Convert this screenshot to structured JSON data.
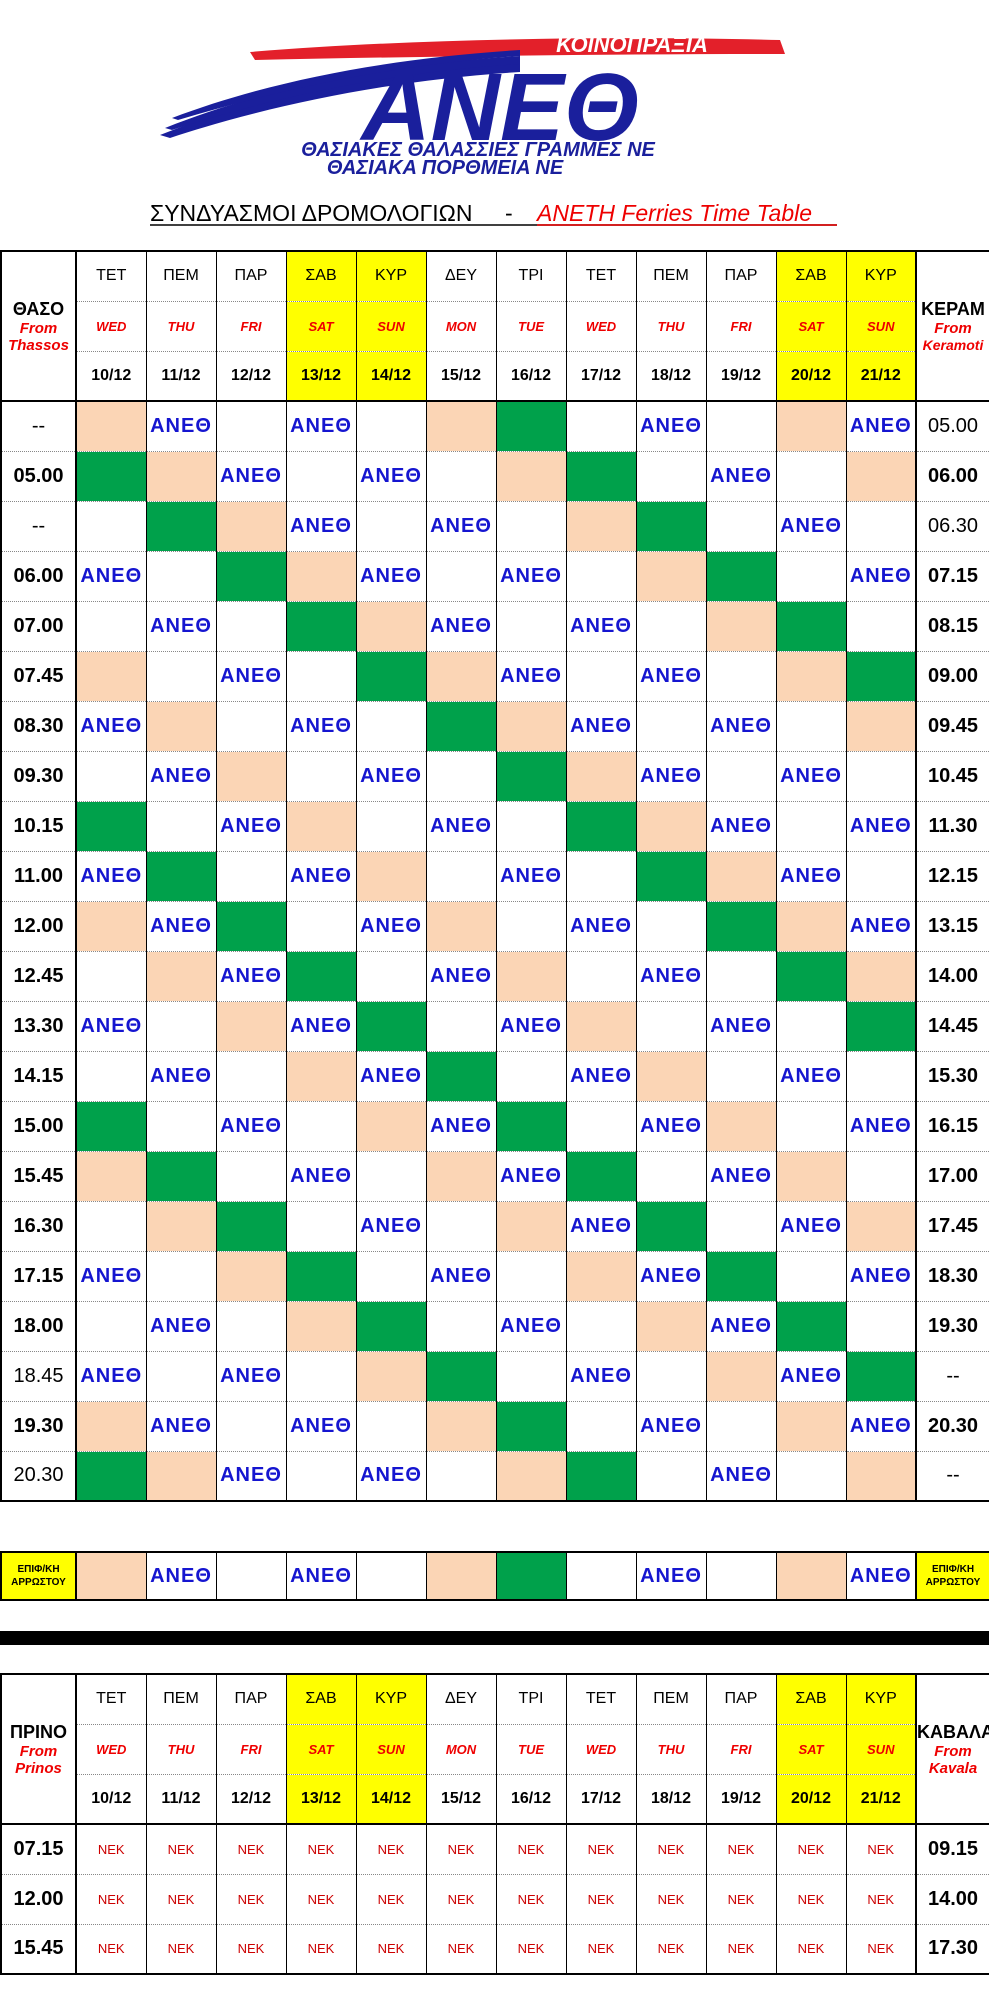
{
  "logo": {
    "top_text": "ΚΟΙΝΟΠΡΑΞΙΑ",
    "brand": "ΑΝΕΘ",
    "line1": "ΘΑΣΙΑΚΕΣ ΘΑΛΑΣΣΙΕΣ ΓΡΑΜΜΕΣ ΝΕ",
    "line2": "ΘΑΣΙΑΚΑ  ΠΟΡΘΜΕΙΑ  ΝΕ"
  },
  "title_greek": "ΣΥΝΔΥΑΣΜΟΙ ΔΡΟΜΟΛΟΓΙΩΝ",
  "title_sep": "-",
  "title_english": "ANETH Ferries Time Table",
  "colors": {
    "green": "#00a14b",
    "peach": "#fbd5b5",
    "yellow": "#ffff00",
    "blue": "#1515d0",
    "red": "#e00000"
  },
  "days": [
    {
      "gr": "ΤΕΤ",
      "en": "WED",
      "date": "10/12",
      "weekend": false
    },
    {
      "gr": "ΠΕΜ",
      "en": "THU",
      "date": "11/12",
      "weekend": false
    },
    {
      "gr": "ΠΑΡ",
      "en": "FRI",
      "date": "12/12",
      "weekend": false
    },
    {
      "gr": "ΣΑΒ",
      "en": "SAT",
      "date": "13/12",
      "weekend": true
    },
    {
      "gr": "ΚΥΡ",
      "en": "SUN",
      "date": "14/12",
      "weekend": true
    },
    {
      "gr": "ΔΕΥ",
      "en": "MON",
      "date": "15/12",
      "weekend": false
    },
    {
      "gr": "ΤΡΙ",
      "en": "TUE",
      "date": "16/12",
      "weekend": false
    },
    {
      "gr": "ΤΕΤ",
      "en": "WED",
      "date": "17/12",
      "weekend": false
    },
    {
      "gr": "ΠΕΜ",
      "en": "THU",
      "date": "18/12",
      "weekend": false
    },
    {
      "gr": "ΠΑΡ",
      "en": "FRI",
      "date": "19/12",
      "weekend": false
    },
    {
      "gr": "ΣΑΒ",
      "en": "SAT",
      "date": "20/12",
      "weekend": true
    },
    {
      "gr": "ΚΥΡ",
      "en": "SUN",
      "date": "21/12",
      "weekend": true
    }
  ],
  "thassos": {
    "left_title": "ΘΑΣΟ",
    "left_from": "From",
    "left_place": "Thassos",
    "right_title": "ΚΕΡΑΜ",
    "right_from": "From",
    "right_place": "Keramoti",
    "operator": "ΑΝΕΘ",
    "legend": "cell codes: A = ΑΝΕΘ sailing, G = green, P = peach, - = empty",
    "rows": [
      {
        "left": "--",
        "left_bold": false,
        "right": "05.00",
        "right_bold": false,
        "cells": "P A - A - P G - A - P A"
      },
      {
        "left": "05.00",
        "left_bold": true,
        "right": "06.00",
        "right_bold": true,
        "cells": "G P A - A - P G - A - P"
      },
      {
        "left": "--",
        "left_bold": false,
        "right": "06.30",
        "right_bold": false,
        "cells": "- G P A - A - P G - A -"
      },
      {
        "left": "06.00",
        "left_bold": true,
        "right": "07.15",
        "right_bold": true,
        "cells": "A - G P A - A - P G - A"
      },
      {
        "left": "07.00",
        "left_bold": true,
        "right": "08.15",
        "right_bold": true,
        "cells": "- A - G P A - A - P G -"
      },
      {
        "left": "07.45",
        "left_bold": true,
        "right": "09.00",
        "right_bold": true,
        "cells": "P - A - G P A - A - P G"
      },
      {
        "left": "08.30",
        "left_bold": true,
        "right": "09.45",
        "right_bold": true,
        "cells": "A P - A - G P A - A - P"
      },
      {
        "left": "09.30",
        "left_bold": true,
        "right": "10.45",
        "right_bold": true,
        "cells": "- A P - A - G P A - A -"
      },
      {
        "left": "10.15",
        "left_bold": true,
        "right": "11.30",
        "right_bold": true,
        "cells": "G - A P - A - G P A - A"
      },
      {
        "left": "11.00",
        "left_bold": true,
        "right": "12.15",
        "right_bold": true,
        "cells": "A G - A P - A - G P A -"
      },
      {
        "left": "12.00",
        "left_bold": true,
        "right": "13.15",
        "right_bold": true,
        "cells": "P A G - A P - A - G P A"
      },
      {
        "left": "12.45",
        "left_bold": true,
        "right": "14.00",
        "right_bold": true,
        "cells": "- P A G - A P - A - G P"
      },
      {
        "left": "13.30",
        "left_bold": true,
        "right": "14.45",
        "right_bold": true,
        "cells": "A - P A G - A P - A - G"
      },
      {
        "left": "14.15",
        "left_bold": true,
        "right": "15.30",
        "right_bold": true,
        "cells": "- A - P A G - A P - A -"
      },
      {
        "left": "15.00",
        "left_bold": true,
        "right": "16.15",
        "right_bold": true,
        "cells": "G - A - P A G - A P - A"
      },
      {
        "left": "15.45",
        "left_bold": true,
        "right": "17.00",
        "right_bold": true,
        "cells": "P G - A - P A G - A P -"
      },
      {
        "left": "16.30",
        "left_bold": true,
        "right": "17.45",
        "right_bold": true,
        "cells": "- P G - A - P A G - A P"
      },
      {
        "left": "17.15",
        "left_bold": true,
        "right": "18.30",
        "right_bold": true,
        "cells": "A - P G - A - P A G - A"
      },
      {
        "left": "18.00",
        "left_bold": true,
        "right": "19.30",
        "right_bold": true,
        "cells": "- A - P G - A - P A G -"
      },
      {
        "left": "18.45",
        "left_bold": false,
        "right": "--",
        "right_bold": false,
        "cells": "A - A - P G - A - P A G"
      },
      {
        "left": "19.30",
        "left_bold": true,
        "right": "20.30",
        "right_bold": true,
        "cells": "P A - A - P G - A - P A"
      },
      {
        "left": "20.30",
        "left_bold": false,
        "right": "--",
        "right_bold": false,
        "cells": "G P A - A - P G - A - P"
      }
    ]
  },
  "emergency": {
    "label_line1": "ΕΠΙΦ/ΚΗ",
    "label_line2": "ΑΡΡΩΣΤΟΥ",
    "cells": "P A - A - P G - A - P A"
  },
  "prinos": {
    "left_title": "ΠΡΙΝΟ",
    "left_from": "From",
    "left_place": "Prinos",
    "right_title": "ΚΑΒΑΛΑ",
    "right_from": "From",
    "right_place": "Kavala",
    "operator": "ΝΕΚ",
    "rows": [
      {
        "left": "07.15",
        "right": "09.15"
      },
      {
        "left": "12.00",
        "right": "14.00"
      },
      {
        "left": "15.45",
        "right": "17.30"
      }
    ]
  }
}
